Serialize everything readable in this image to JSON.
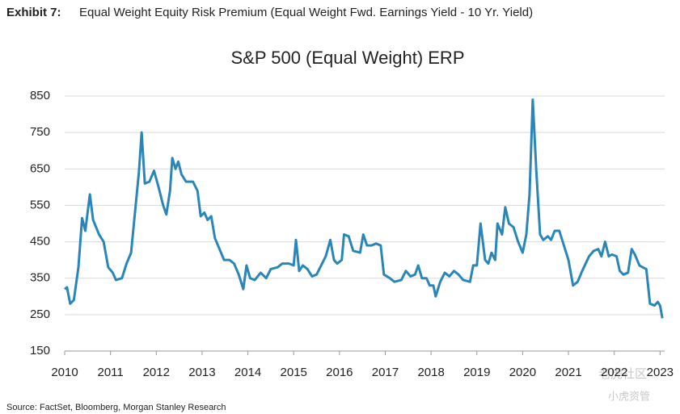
{
  "header": {
    "label": "Exhibit 7:",
    "text": "Equal Weight Equity Risk Premium (Equal Weight Fwd. Earnings Yield - 10 Yr. Yield)"
  },
  "chart_data": {
    "type": "line",
    "title": "S&P 500 (Equal Weight) ERP",
    "color": "#2a86b8",
    "grid": true,
    "xlim": [
      2010,
      2023.1
    ],
    "xticks": [
      2010,
      2011,
      2012,
      2013,
      2014,
      2015,
      2016,
      2017,
      2018,
      2019,
      2020,
      2021,
      2022,
      2023
    ],
    "ylim": [
      150,
      850
    ],
    "yticks": [
      150,
      250,
      350,
      450,
      550,
      650,
      750,
      850
    ],
    "x": [
      2010.0,
      2010.05,
      2010.12,
      2010.2,
      2010.3,
      2010.38,
      2010.45,
      2010.55,
      2010.62,
      2010.75,
      2010.85,
      2010.95,
      2011.05,
      2011.12,
      2011.25,
      2011.35,
      2011.45,
      2011.55,
      2011.62,
      2011.68,
      2011.75,
      2011.85,
      2011.95,
      2012.05,
      2012.15,
      2012.22,
      2012.3,
      2012.35,
      2012.42,
      2012.48,
      2012.55,
      2012.65,
      2012.8,
      2012.9,
      2012.97,
      2013.05,
      2013.12,
      2013.2,
      2013.28,
      2013.38,
      2013.48,
      2013.6,
      2013.7,
      2013.8,
      2013.9,
      2013.97,
      2014.05,
      2014.15,
      2014.28,
      2014.4,
      2014.5,
      2014.65,
      2014.75,
      2014.9,
      2015.0,
      2015.05,
      2015.12,
      2015.2,
      2015.3,
      2015.4,
      2015.5,
      2015.6,
      2015.7,
      2015.8,
      2015.88,
      2015.95,
      2016.05,
      2016.1,
      2016.2,
      2016.3,
      2016.45,
      2016.52,
      2016.6,
      2016.7,
      2016.8,
      2016.9,
      2016.97,
      2017.1,
      2017.2,
      2017.35,
      2017.45,
      2017.55,
      2017.65,
      2017.72,
      2017.8,
      2017.9,
      2017.97,
      2018.05,
      2018.1,
      2018.2,
      2018.3,
      2018.4,
      2018.5,
      2018.6,
      2018.7,
      2018.85,
      2018.92,
      2019.0,
      2019.08,
      2019.18,
      2019.25,
      2019.32,
      2019.4,
      2019.45,
      2019.55,
      2019.62,
      2019.7,
      2019.8,
      2019.9,
      2020.0,
      2020.08,
      2020.15,
      2020.22,
      2020.3,
      2020.38,
      2020.45,
      2020.55,
      2020.62,
      2020.7,
      2020.8,
      2020.9,
      2021.0,
      2021.1,
      2021.2,
      2021.3,
      2021.45,
      2021.55,
      2021.65,
      2021.72,
      2021.8,
      2021.88,
      2021.95,
      2022.05,
      2022.12,
      2022.2,
      2022.3,
      2022.38,
      2022.45,
      2022.55,
      2022.62,
      2022.7,
      2022.78,
      2022.88,
      2022.95,
      2023.0,
      2023.05
    ],
    "values": [
      320,
      325,
      280,
      290,
      380,
      515,
      480,
      580,
      510,
      470,
      450,
      380,
      365,
      345,
      350,
      390,
      420,
      550,
      640,
      750,
      610,
      615,
      645,
      600,
      550,
      525,
      590,
      680,
      650,
      670,
      635,
      615,
      615,
      590,
      520,
      530,
      510,
      520,
      460,
      430,
      400,
      400,
      390,
      360,
      320,
      385,
      350,
      345,
      365,
      350,
      375,
      380,
      390,
      390,
      385,
      455,
      370,
      385,
      375,
      355,
      360,
      385,
      410,
      455,
      400,
      390,
      400,
      470,
      465,
      425,
      420,
      470,
      440,
      440,
      445,
      440,
      360,
      350,
      340,
      345,
      370,
      355,
      360,
      385,
      350,
      350,
      330,
      330,
      300,
      340,
      365,
      355,
      370,
      360,
      345,
      340,
      385,
      385,
      500,
      400,
      390,
      420,
      400,
      500,
      470,
      545,
      500,
      490,
      450,
      420,
      470,
      580,
      840,
      640,
      470,
      455,
      465,
      455,
      480,
      480,
      440,
      400,
      330,
      340,
      370,
      410,
      425,
      430,
      410,
      450,
      410,
      415,
      410,
      370,
      360,
      365,
      430,
      415,
      385,
      380,
      375,
      280,
      275,
      285,
      275,
      240
    ]
  },
  "source": "Source: FactSet, Bloomberg, Morgan Stanley Research",
  "watermark": [
    "老虎社区",
    "小虎资管"
  ]
}
